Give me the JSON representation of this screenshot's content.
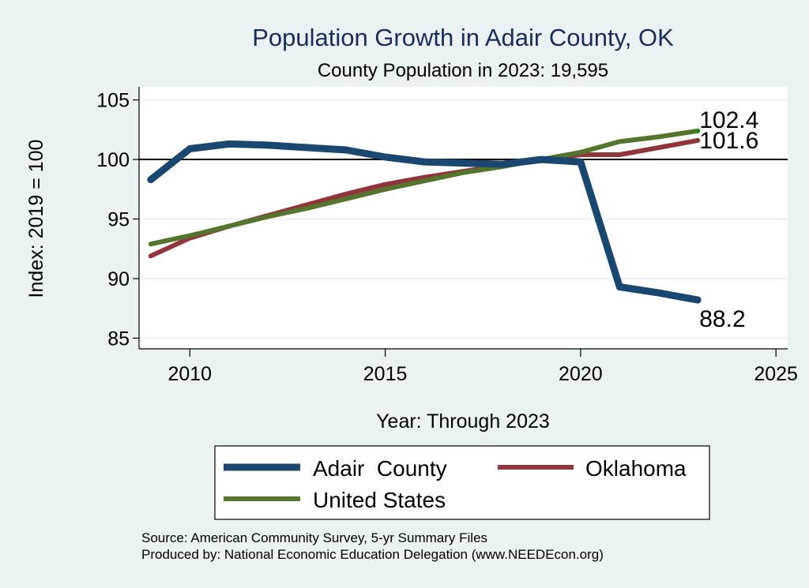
{
  "chart_data": {
    "type": "line",
    "title": "Population Growth in Adair County, OK",
    "subtitle": "County Population in 2023: 19,595",
    "xlabel": "Year: Through 2023",
    "ylabel": "Index: 2019 = 100",
    "xlim": [
      2008.7,
      2025.3
    ],
    "ylim": [
      84.1,
      106.1
    ],
    "x_ticks": [
      2010,
      2015,
      2020,
      2025
    ],
    "y_ticks": [
      85,
      90,
      95,
      100,
      105
    ],
    "reference_line": 100,
    "grid": true,
    "x": [
      2009,
      2010,
      2011,
      2012,
      2013,
      2014,
      2015,
      2016,
      2017,
      2018,
      2019,
      2020,
      2021,
      2022,
      2023
    ],
    "series": [
      {
        "name": "Adair  County",
        "color": "#1a476f",
        "values": [
          98.3,
          100.9,
          101.3,
          101.2,
          101.0,
          100.8,
          100.2,
          99.8,
          99.7,
          99.6,
          100.0,
          99.8,
          89.3,
          88.8,
          88.2
        ],
        "end_label": "88.2"
      },
      {
        "name": "Oklahoma",
        "color": "#90353b",
        "values": [
          91.9,
          93.4,
          94.4,
          95.3,
          96.2,
          97.1,
          97.9,
          98.5,
          99.0,
          99.5,
          100.0,
          100.4,
          100.4,
          101.0,
          101.6
        ],
        "end_label": "101.6"
      },
      {
        "name": "United States",
        "color": "#55752f",
        "values": [
          92.9,
          93.6,
          94.4,
          95.2,
          95.9,
          96.7,
          97.5,
          98.2,
          98.9,
          99.4,
          100.0,
          100.6,
          101.5,
          101.9,
          102.4
        ],
        "end_label": "102.4"
      }
    ],
    "legend": {
      "placement": "bottom",
      "entries": [
        "Adair  County",
        "Oklahoma",
        "United States"
      ]
    },
    "notes": [
      "Source: American Community Survey, 5-yr Summary Files",
      "Produced by: National Economic Education Delegation (www.NEEDEcon.org)"
    ]
  }
}
